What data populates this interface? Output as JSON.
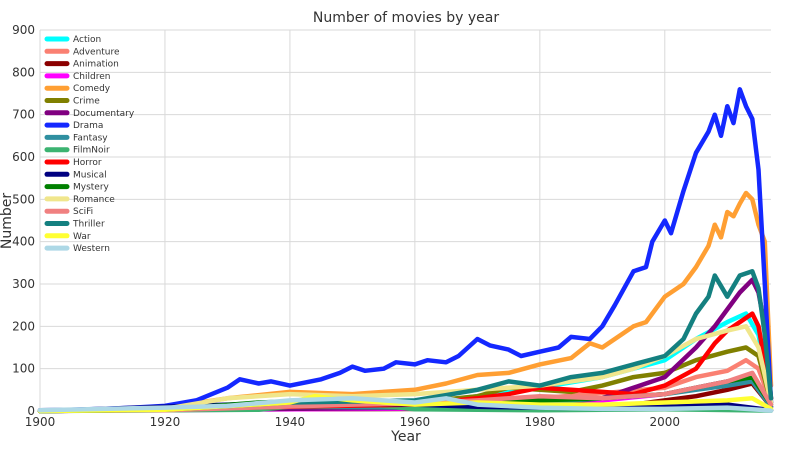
{
  "chart_data": {
    "type": "line",
    "title": "Number of movies by year",
    "xlabel": "Year",
    "ylabel": "Number",
    "xlim": [
      1900,
      2017
    ],
    "ylim": [
      0,
      900
    ],
    "xticks": [
      1900,
      1920,
      1940,
      1960,
      1980,
      2000
    ],
    "yticks": [
      0,
      100,
      200,
      300,
      400,
      500,
      600,
      700,
      800,
      900
    ],
    "grid": true,
    "legend_position": "top-left",
    "series": [
      {
        "name": "Action",
        "color": "#00ffff",
        "points": [
          [
            1900,
            1
          ],
          [
            1920,
            3
          ],
          [
            1940,
            12
          ],
          [
            1960,
            18
          ],
          [
            1970,
            35
          ],
          [
            1980,
            55
          ],
          [
            1990,
            80
          ],
          [
            1995,
            100
          ],
          [
            2000,
            120
          ],
          [
            2005,
            170
          ],
          [
            2010,
            210
          ],
          [
            2013,
            230
          ],
          [
            2015,
            180
          ],
          [
            2017,
            30
          ]
        ]
      },
      {
        "name": "Adventure",
        "color": "#fa8072",
        "points": [
          [
            1900,
            1
          ],
          [
            1920,
            4
          ],
          [
            1940,
            15
          ],
          [
            1960,
            18
          ],
          [
            1970,
            28
          ],
          [
            1980,
            30
          ],
          [
            1990,
            42
          ],
          [
            2000,
            55
          ],
          [
            2005,
            80
          ],
          [
            2010,
            95
          ],
          [
            2013,
            120
          ],
          [
            2015,
            100
          ],
          [
            2017,
            20
          ]
        ]
      },
      {
        "name": "Animation",
        "color": "#8b0000",
        "points": [
          [
            1900,
            0
          ],
          [
            1930,
            4
          ],
          [
            1960,
            5
          ],
          [
            1980,
            8
          ],
          [
            1995,
            15
          ],
          [
            2000,
            25
          ],
          [
            2005,
            35
          ],
          [
            2010,
            50
          ],
          [
            2014,
            65
          ],
          [
            2017,
            10
          ]
        ]
      },
      {
        "name": "Children",
        "color": "#ff00ff",
        "points": [
          [
            1900,
            0
          ],
          [
            1930,
            3
          ],
          [
            1960,
            6
          ],
          [
            1980,
            12
          ],
          [
            1990,
            25
          ],
          [
            2000,
            40
          ],
          [
            2005,
            55
          ],
          [
            2010,
            70
          ],
          [
            2014,
            75
          ],
          [
            2017,
            10
          ]
        ]
      },
      {
        "name": "Comedy",
        "color": "#ff9f33",
        "points": [
          [
            1900,
            2
          ],
          [
            1910,
            3
          ],
          [
            1920,
            8
          ],
          [
            1930,
            30
          ],
          [
            1940,
            45
          ],
          [
            1950,
            40
          ],
          [
            1955,
            45
          ],
          [
            1960,
            50
          ],
          [
            1965,
            65
          ],
          [
            1970,
            85
          ],
          [
            1975,
            90
          ],
          [
            1980,
            110
          ],
          [
            1985,
            125
          ],
          [
            1988,
            160
          ],
          [
            1990,
            150
          ],
          [
            1993,
            180
          ],
          [
            1995,
            200
          ],
          [
            1997,
            210
          ],
          [
            1999,
            250
          ],
          [
            2000,
            270
          ],
          [
            2003,
            300
          ],
          [
            2005,
            340
          ],
          [
            2007,
            390
          ],
          [
            2008,
            440
          ],
          [
            2009,
            410
          ],
          [
            2010,
            470
          ],
          [
            2011,
            460
          ],
          [
            2012,
            490
          ],
          [
            2013,
            515
          ],
          [
            2014,
            500
          ],
          [
            2015,
            440
          ],
          [
            2016,
            400
          ],
          [
            2017,
            60
          ]
        ]
      },
      {
        "name": "Crime",
        "color": "#808000",
        "points": [
          [
            1900,
            0
          ],
          [
            1920,
            3
          ],
          [
            1930,
            12
          ],
          [
            1940,
            20
          ],
          [
            1950,
            18
          ],
          [
            1960,
            20
          ],
          [
            1970,
            35
          ],
          [
            1975,
            55
          ],
          [
            1980,
            50
          ],
          [
            1985,
            45
          ],
          [
            1990,
            60
          ],
          [
            1995,
            80
          ],
          [
            2000,
            90
          ],
          [
            2005,
            120
          ],
          [
            2010,
            140
          ],
          [
            2013,
            150
          ],
          [
            2015,
            130
          ],
          [
            2017,
            20
          ]
        ]
      },
      {
        "name": "Documentary",
        "color": "#800080",
        "points": [
          [
            1900,
            0
          ],
          [
            1940,
            5
          ],
          [
            1960,
            8
          ],
          [
            1980,
            15
          ],
          [
            1990,
            30
          ],
          [
            2000,
            80
          ],
          [
            2005,
            150
          ],
          [
            2008,
            200
          ],
          [
            2010,
            240
          ],
          [
            2012,
            280
          ],
          [
            2014,
            310
          ],
          [
            2015,
            280
          ],
          [
            2016,
            200
          ],
          [
            2017,
            30
          ]
        ]
      },
      {
        "name": "Drama",
        "color": "#1428ff",
        "points": [
          [
            1900,
            2
          ],
          [
            1905,
            3
          ],
          [
            1910,
            5
          ],
          [
            1915,
            8
          ],
          [
            1920,
            12
          ],
          [
            1925,
            25
          ],
          [
            1930,
            55
          ],
          [
            1932,
            75
          ],
          [
            1935,
            65
          ],
          [
            1937,
            70
          ],
          [
            1940,
            60
          ],
          [
            1945,
            75
          ],
          [
            1948,
            90
          ],
          [
            1950,
            105
          ],
          [
            1952,
            95
          ],
          [
            1955,
            100
          ],
          [
            1957,
            115
          ],
          [
            1960,
            110
          ],
          [
            1962,
            120
          ],
          [
            1965,
            115
          ],
          [
            1967,
            130
          ],
          [
            1970,
            170
          ],
          [
            1972,
            155
          ],
          [
            1975,
            145
          ],
          [
            1977,
            130
          ],
          [
            1980,
            140
          ],
          [
            1983,
            150
          ],
          [
            1985,
            175
          ],
          [
            1988,
            170
          ],
          [
            1990,
            200
          ],
          [
            1992,
            250
          ],
          [
            1995,
            330
          ],
          [
            1997,
            340
          ],
          [
            1998,
            400
          ],
          [
            2000,
            450
          ],
          [
            2001,
            420
          ],
          [
            2003,
            520
          ],
          [
            2005,
            610
          ],
          [
            2007,
            660
          ],
          [
            2008,
            700
          ],
          [
            2009,
            650
          ],
          [
            2010,
            720
          ],
          [
            2011,
            680
          ],
          [
            2012,
            760
          ],
          [
            2013,
            720
          ],
          [
            2014,
            690
          ],
          [
            2015,
            570
          ],
          [
            2016,
            300
          ],
          [
            2017,
            20
          ]
        ]
      },
      {
        "name": "Fantasy",
        "color": "#2f8fa0",
        "points": [
          [
            1900,
            1
          ],
          [
            1920,
            5
          ],
          [
            1940,
            10
          ],
          [
            1960,
            8
          ],
          [
            1980,
            20
          ],
          [
            1990,
            30
          ],
          [
            2000,
            40
          ],
          [
            2005,
            50
          ],
          [
            2010,
            60
          ],
          [
            2014,
            70
          ],
          [
            2017,
            10
          ]
        ]
      },
      {
        "name": "FilmNoir",
        "color": "#3cb371",
        "points": [
          [
            1900,
            0
          ],
          [
            1935,
            3
          ],
          [
            1945,
            18
          ],
          [
            1950,
            22
          ],
          [
            1955,
            12
          ],
          [
            1960,
            4
          ],
          [
            1980,
            2
          ],
          [
            2000,
            4
          ],
          [
            2017,
            1
          ]
        ]
      },
      {
        "name": "Horror",
        "color": "#ff0000",
        "points": [
          [
            1900,
            0
          ],
          [
            1920,
            5
          ],
          [
            1940,
            10
          ],
          [
            1960,
            15
          ],
          [
            1970,
            30
          ],
          [
            1975,
            40
          ],
          [
            1980,
            55
          ],
          [
            1985,
            50
          ],
          [
            1990,
            45
          ],
          [
            1995,
            40
          ],
          [
            2000,
            60
          ],
          [
            2005,
            100
          ],
          [
            2008,
            160
          ],
          [
            2010,
            190
          ],
          [
            2012,
            210
          ],
          [
            2014,
            230
          ],
          [
            2015,
            200
          ],
          [
            2017,
            30
          ]
        ]
      },
      {
        "name": "Musical",
        "color": "#000080",
        "points": [
          [
            1900,
            0
          ],
          [
            1930,
            15
          ],
          [
            1940,
            20
          ],
          [
            1950,
            18
          ],
          [
            1960,
            15
          ],
          [
            1970,
            10
          ],
          [
            1980,
            8
          ],
          [
            1990,
            6
          ],
          [
            2000,
            10
          ],
          [
            2010,
            15
          ],
          [
            2017,
            2
          ]
        ]
      },
      {
        "name": "Mystery",
        "color": "#008000",
        "points": [
          [
            1900,
            0
          ],
          [
            1920,
            3
          ],
          [
            1935,
            20
          ],
          [
            1945,
            25
          ],
          [
            1960,
            20
          ],
          [
            1970,
            22
          ],
          [
            1980,
            25
          ],
          [
            1990,
            30
          ],
          [
            2000,
            40
          ],
          [
            2005,
            55
          ],
          [
            2010,
            70
          ],
          [
            2014,
            80
          ],
          [
            2017,
            15
          ]
        ]
      },
      {
        "name": "Romance",
        "color": "#f0e68c",
        "points": [
          [
            1900,
            1
          ],
          [
            1920,
            5
          ],
          [
            1930,
            30
          ],
          [
            1940,
            40
          ],
          [
            1950,
            35
          ],
          [
            1960,
            40
          ],
          [
            1970,
            50
          ],
          [
            1980,
            60
          ],
          [
            1990,
            80
          ],
          [
            1995,
            100
          ],
          [
            2000,
            130
          ],
          [
            2005,
            170
          ],
          [
            2010,
            190
          ],
          [
            2013,
            200
          ],
          [
            2015,
            150
          ],
          [
            2017,
            20
          ]
        ]
      },
      {
        "name": "SciFi",
        "color": "#f08080",
        "points": [
          [
            1900,
            1
          ],
          [
            1920,
            2
          ],
          [
            1950,
            15
          ],
          [
            1960,
            18
          ],
          [
            1970,
            25
          ],
          [
            1980,
            35
          ],
          [
            1990,
            30
          ],
          [
            2000,
            40
          ],
          [
            2005,
            55
          ],
          [
            2010,
            70
          ],
          [
            2014,
            90
          ],
          [
            2017,
            15
          ]
        ]
      },
      {
        "name": "Thriller",
        "color": "#148080",
        "points": [
          [
            1900,
            0
          ],
          [
            1920,
            3
          ],
          [
            1940,
            20
          ],
          [
            1960,
            25
          ],
          [
            1970,
            50
          ],
          [
            1975,
            70
          ],
          [
            1980,
            60
          ],
          [
            1985,
            80
          ],
          [
            1990,
            90
          ],
          [
            1995,
            110
          ],
          [
            2000,
            130
          ],
          [
            2003,
            170
          ],
          [
            2005,
            230
          ],
          [
            2007,
            270
          ],
          [
            2008,
            320
          ],
          [
            2010,
            270
          ],
          [
            2012,
            320
          ],
          [
            2014,
            330
          ],
          [
            2015,
            290
          ],
          [
            2016,
            180
          ],
          [
            2017,
            30
          ]
        ]
      },
      {
        "name": "War",
        "color": "#ffff33",
        "points": [
          [
            1900,
            0
          ],
          [
            1920,
            3
          ],
          [
            1940,
            20
          ],
          [
            1944,
            35
          ],
          [
            1950,
            25
          ],
          [
            1960,
            15
          ],
          [
            1970,
            20
          ],
          [
            1980,
            15
          ],
          [
            1990,
            15
          ],
          [
            2000,
            20
          ],
          [
            2010,
            25
          ],
          [
            2014,
            30
          ],
          [
            2017,
            5
          ]
        ]
      },
      {
        "name": "Western",
        "color": "#add8e6",
        "points": [
          [
            1900,
            2
          ],
          [
            1920,
            8
          ],
          [
            1930,
            12
          ],
          [
            1940,
            25
          ],
          [
            1950,
            30
          ],
          [
            1955,
            25
          ],
          [
            1960,
            20
          ],
          [
            1965,
            30
          ],
          [
            1970,
            15
          ],
          [
            1980,
            8
          ],
          [
            1990,
            5
          ],
          [
            2000,
            5
          ],
          [
            2010,
            8
          ],
          [
            2017,
            1
          ]
        ]
      }
    ]
  }
}
